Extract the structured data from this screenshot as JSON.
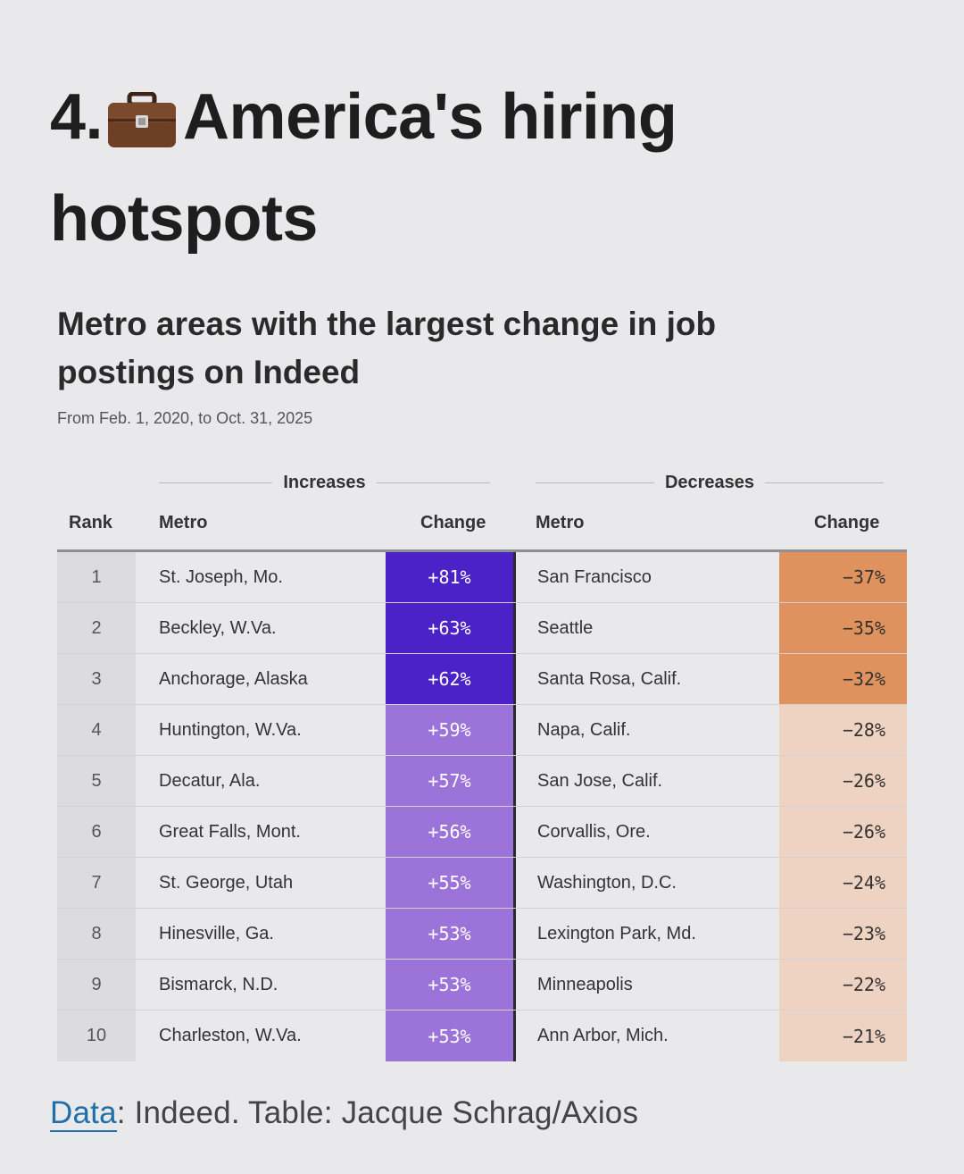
{
  "heading": {
    "number": "4.",
    "emoji": "briefcase-icon",
    "title_line1": "America's hiring",
    "title_line2": "hotspots"
  },
  "colors": {
    "increase_strong": "#4a22c8",
    "increase_light": "#9b73d9",
    "decrease_strong": "#e0925e",
    "decrease_light": "#efd3c2",
    "link": "#1f6fa8"
  },
  "chart_data": {
    "type": "table",
    "title": "Metro areas with the largest change in job postings on Indeed",
    "subtitle": "From Feb. 1, 2020, to Oct. 31, 2025",
    "group_labels": {
      "increases": "Increases",
      "decreases": "Decreases"
    },
    "columns": {
      "rank": "Rank",
      "metro_inc": "Metro",
      "change_inc": "Change",
      "metro_dec": "Metro",
      "change_dec": "Change"
    },
    "rows": [
      {
        "rank": "1",
        "inc_metro": "St. Joseph, Mo.",
        "inc_change": "+81%",
        "inc_value": 81,
        "dec_metro": "San Francisco",
        "dec_change": "−37%",
        "dec_value": -37
      },
      {
        "rank": "2",
        "inc_metro": "Beckley, W.Va.",
        "inc_change": "+63%",
        "inc_value": 63,
        "dec_metro": "Seattle",
        "dec_change": "−35%",
        "dec_value": -35
      },
      {
        "rank": "3",
        "inc_metro": "Anchorage, Alaska",
        "inc_change": "+62%",
        "inc_value": 62,
        "dec_metro": "Santa Rosa, Calif.",
        "dec_change": "−32%",
        "dec_value": -32
      },
      {
        "rank": "4",
        "inc_metro": "Huntington, W.Va.",
        "inc_change": "+59%",
        "inc_value": 59,
        "dec_metro": "Napa, Calif.",
        "dec_change": "−28%",
        "dec_value": -28
      },
      {
        "rank": "5",
        "inc_metro": "Decatur, Ala.",
        "inc_change": "+57%",
        "inc_value": 57,
        "dec_metro": "San Jose, Calif.",
        "dec_change": "−26%",
        "dec_value": -26
      },
      {
        "rank": "6",
        "inc_metro": "Great Falls, Mont.",
        "inc_change": "+56%",
        "inc_value": 56,
        "dec_metro": "Corvallis, Ore.",
        "dec_change": "−26%",
        "dec_value": -26
      },
      {
        "rank": "7",
        "inc_metro": "St. George, Utah",
        "inc_change": "+55%",
        "inc_value": 55,
        "dec_metro": "Washington, D.C.",
        "dec_change": "−24%",
        "dec_value": -24
      },
      {
        "rank": "8",
        "inc_metro": "Hinesville, Ga.",
        "inc_change": "+53%",
        "inc_value": 53,
        "dec_metro": "Lexington Park, Md.",
        "dec_change": "−23%",
        "dec_value": -23
      },
      {
        "rank": "9",
        "inc_metro": "Bismarck, N.D.",
        "inc_change": "+53%",
        "inc_value": 53,
        "dec_metro": "Minneapolis",
        "dec_change": "−22%",
        "dec_value": -22
      },
      {
        "rank": "10",
        "inc_metro": "Charleston, W.Va.",
        "inc_change": "+53%",
        "inc_value": 53,
        "dec_metro": "Ann Arbor, Mich.",
        "dec_change": "−21%",
        "dec_value": -21
      }
    ]
  },
  "footer": {
    "data_link": "Data",
    "rest": ": Indeed. Table: Jacque Schrag/Axios"
  }
}
